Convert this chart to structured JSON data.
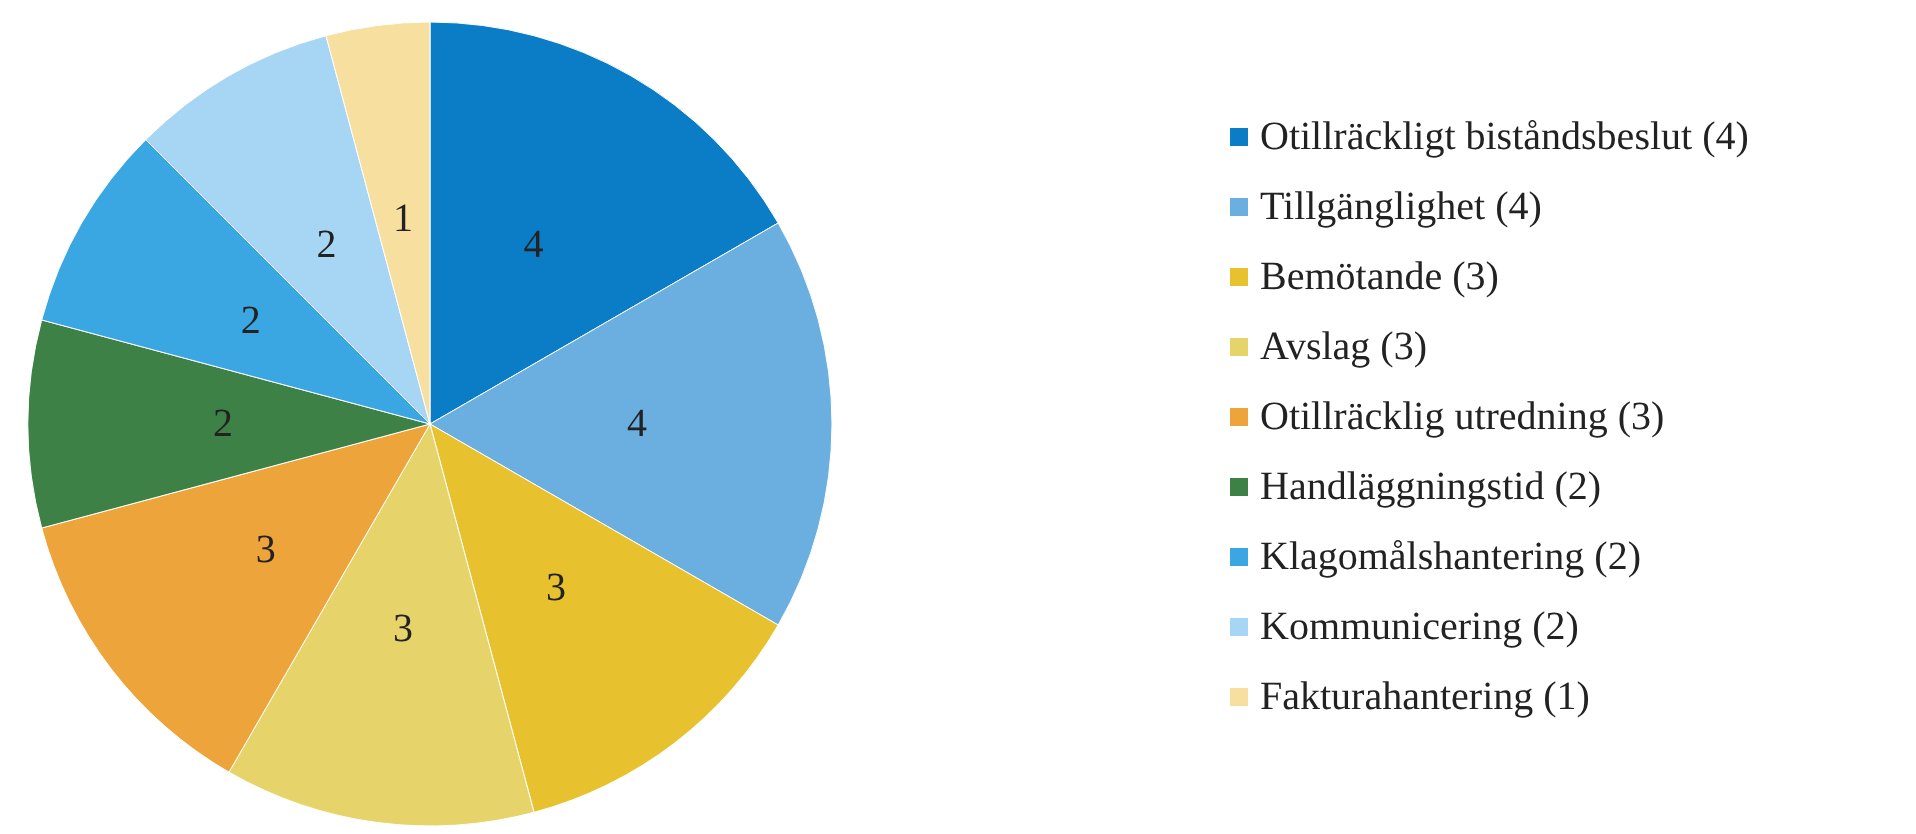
{
  "chart_data": {
    "type": "pie",
    "categories": [
      "Otillräckligt biståndsbeslut (4)",
      "Tillgänglighet (4)",
      "Bemötande (3)",
      "Avslag (3)",
      "Otillräcklig utredning (3)",
      "Handläggningstid (2)",
      "Klagomålshantering (2)",
      "Kommunicering (2)",
      "Fakturahantering (1)"
    ],
    "values": [
      4,
      4,
      3,
      3,
      3,
      2,
      2,
      2,
      1
    ],
    "colors": [
      "#0a7dc6",
      "#6aafe0",
      "#e8c22e",
      "#e6d46a",
      "#eda43a",
      "#3e8146",
      "#3aa6e2",
      "#a7d6f5",
      "#f7dfa0"
    ],
    "data_labels": true,
    "legend": "right"
  }
}
